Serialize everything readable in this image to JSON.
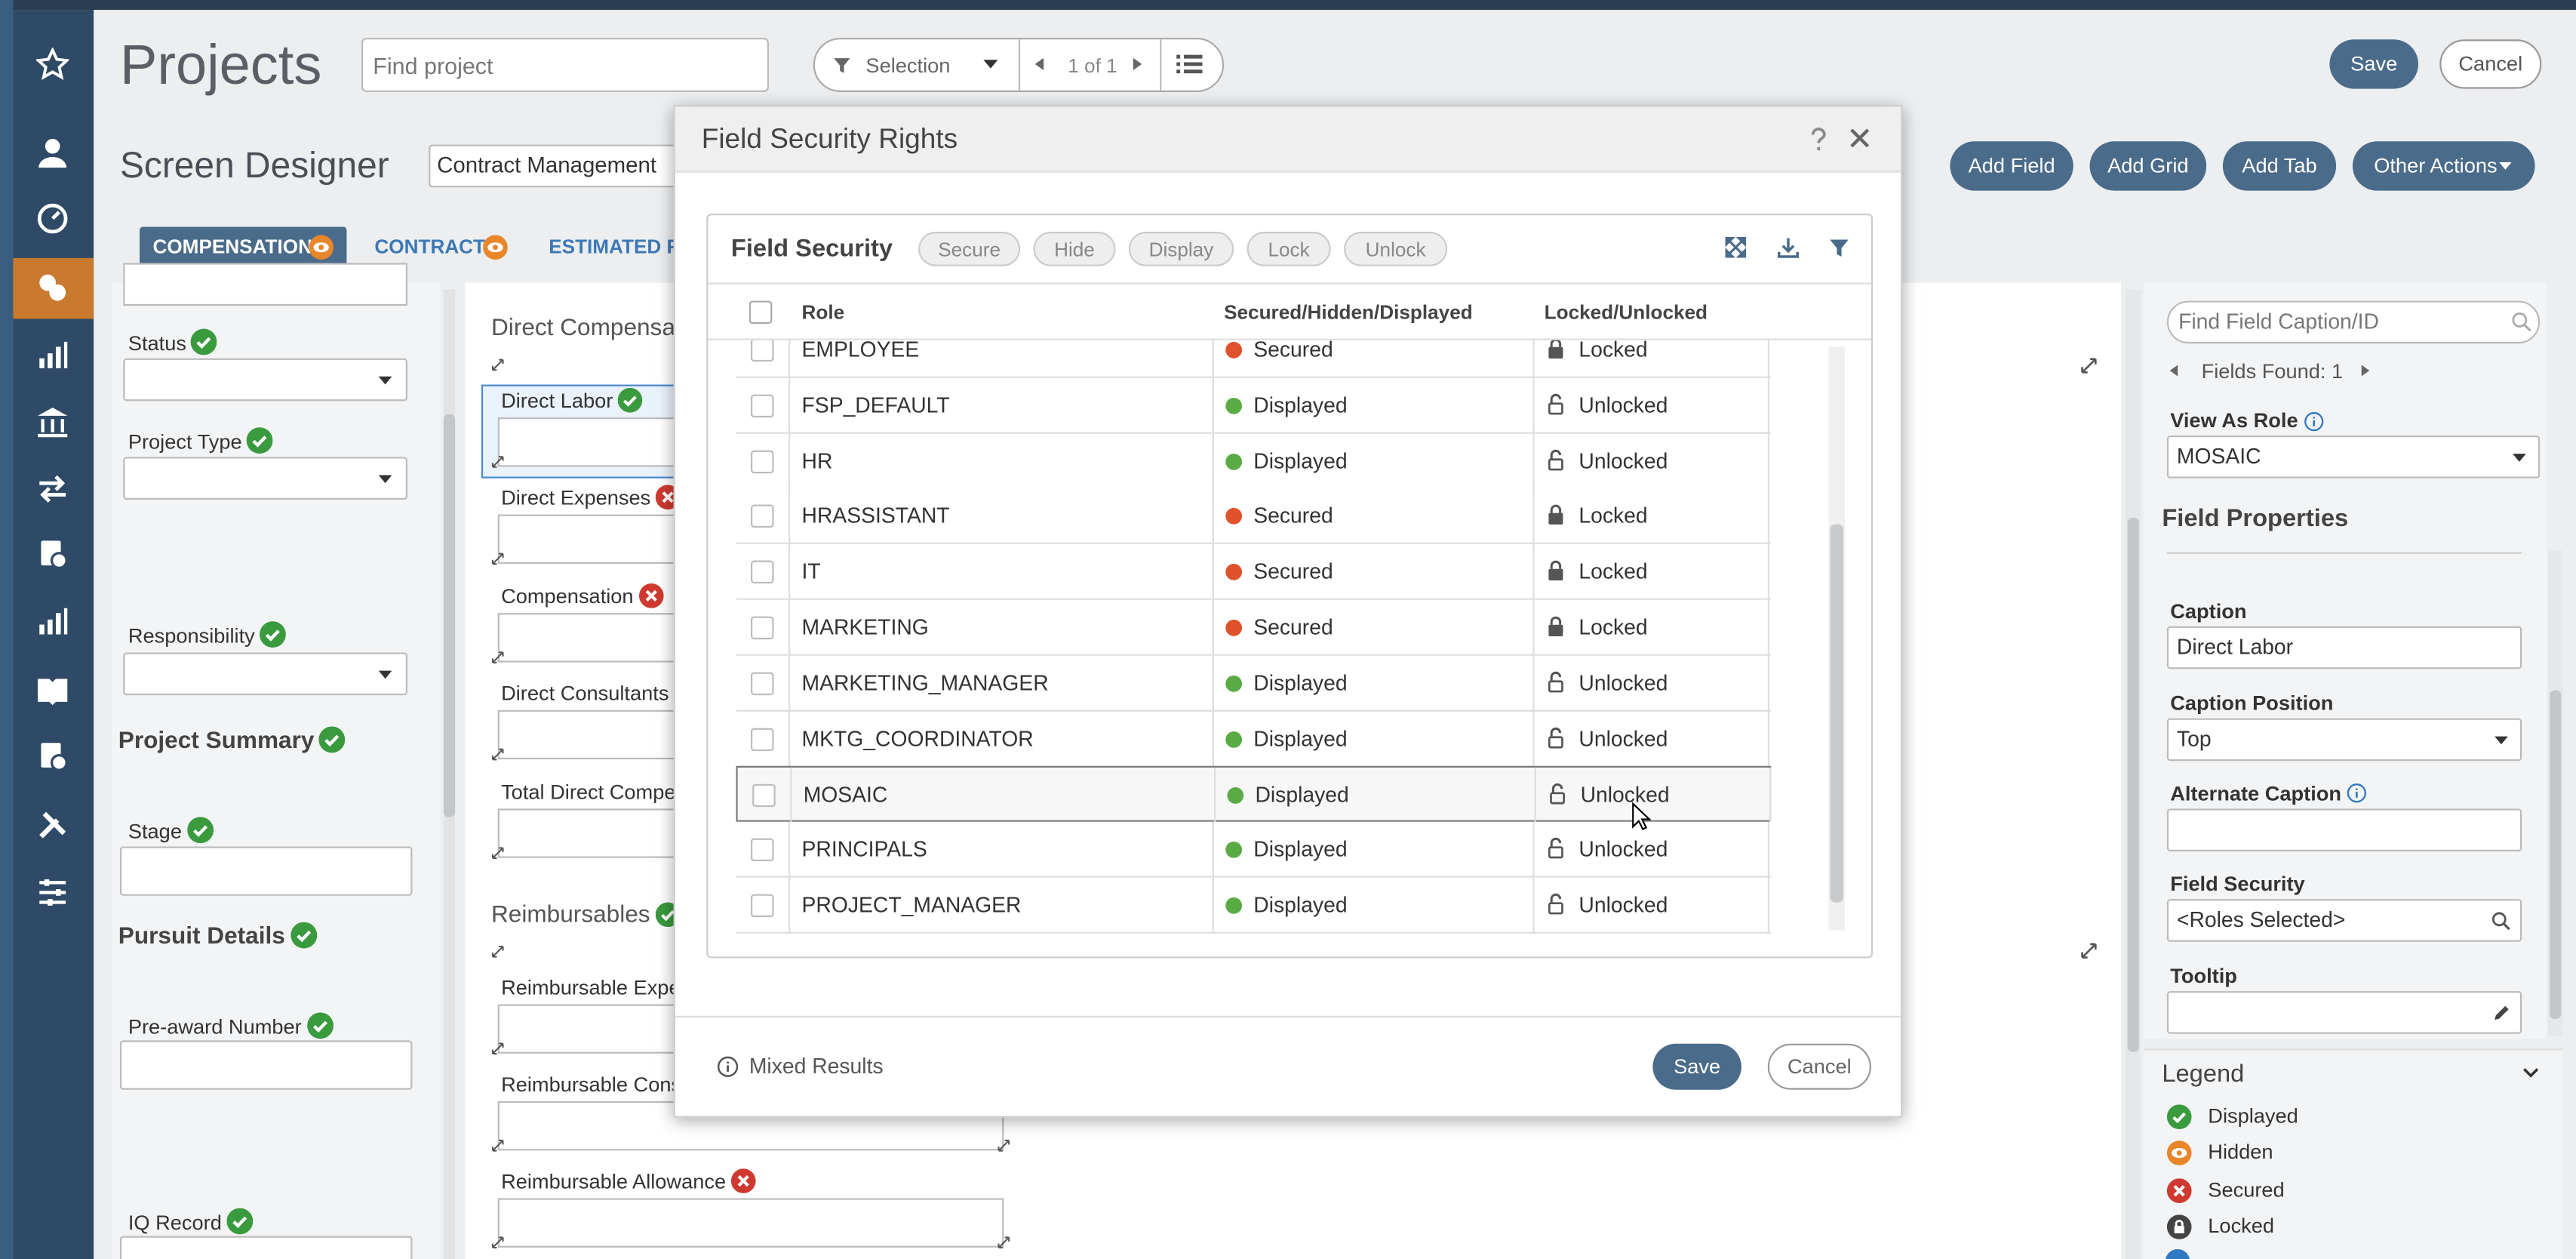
{
  "header": {
    "title": "Projects",
    "search_placeholder": "Find project",
    "filter_label": "Selection",
    "pager": "1 of 1",
    "save": "Save",
    "cancel": "Cancel"
  },
  "toolbar": {
    "title": "Screen Designer",
    "screen": "Contract Management",
    "buttons": [
      "Add Field",
      "Add Grid",
      "Add Tab",
      "Other Actions"
    ]
  },
  "tabs": [
    {
      "label": "COMPENSATION",
      "active": true
    },
    {
      "label": "CONTRACT",
      "active": false
    },
    {
      "label": "ESTIMATED FE",
      "active": false
    }
  ],
  "left_panel": {
    "items": [
      {
        "label": "Status",
        "status": "displayed",
        "control": "select"
      },
      {
        "label": "Project Type",
        "status": "displayed",
        "control": "select"
      },
      {
        "label": "Responsibility",
        "status": "displayed",
        "control": "select"
      },
      {
        "label": "Project Summary",
        "status": "displayed",
        "control": "section"
      },
      {
        "label": "Stage",
        "status": "displayed",
        "control": "input"
      },
      {
        "label": "Pursuit Details",
        "status": "displayed",
        "control": "section"
      },
      {
        "label": "Pre-award Number",
        "status": "displayed",
        "control": "input"
      },
      {
        "label": "IQ Record",
        "status": "displayed",
        "control": "input"
      }
    ]
  },
  "canvas": {
    "items": [
      {
        "label": "Direct Compensa",
        "control": "section"
      },
      {
        "label": "Direct Labor",
        "status": "displayed",
        "control": "input",
        "selected": true
      },
      {
        "label": "Direct Expenses",
        "status": "secured",
        "control": "input"
      },
      {
        "label": "Compensation",
        "status": "secured",
        "control": "input"
      },
      {
        "label": "Direct Consultants",
        "control": "input"
      },
      {
        "label": "Total Direct Compe",
        "control": "input"
      },
      {
        "label": "Reimbursables",
        "status": "displayed",
        "control": "section"
      },
      {
        "label": "Reimbursable Expe",
        "control": "input"
      },
      {
        "label": "Reimbursable Cons",
        "control": "input"
      },
      {
        "label": "Reimbursable Allowance",
        "status": "secured",
        "control": "input"
      }
    ]
  },
  "dialog": {
    "title": "Field Security Rights",
    "card_title": "Field Security",
    "actions": [
      "Secure",
      "Hide",
      "Display",
      "Lock",
      "Unlock"
    ],
    "columns": [
      "Role",
      "Secured/Hidden/Displayed",
      "Locked/Unlocked"
    ],
    "rows": [
      {
        "role": "EMPLOYEE",
        "state": "Secured",
        "state_color": "#e0522b",
        "lock": "Locked",
        "locked": true
      },
      {
        "role": "FSP_DEFAULT",
        "state": "Displayed",
        "state_color": "#5aab45",
        "lock": "Unlocked",
        "locked": false
      },
      {
        "role": "HR",
        "state": "Displayed",
        "state_color": "#5aab45",
        "lock": "Unlocked",
        "locked": false
      },
      {
        "role": "HRASSISTANT",
        "state": "Secured",
        "state_color": "#e0522b",
        "lock": "Locked",
        "locked": true
      },
      {
        "role": "IT",
        "state": "Secured",
        "state_color": "#e0522b",
        "lock": "Locked",
        "locked": true
      },
      {
        "role": "MARKETING",
        "state": "Secured",
        "state_color": "#e0522b",
        "lock": "Locked",
        "locked": true
      },
      {
        "role": "MARKETING_MANAGER",
        "state": "Displayed",
        "state_color": "#5aab45",
        "lock": "Unlocked",
        "locked": false
      },
      {
        "role": "MKTG_COORDINATOR",
        "state": "Displayed",
        "state_color": "#5aab45",
        "lock": "Unlocked",
        "locked": false
      },
      {
        "role": "MOSAIC",
        "state": "Displayed",
        "state_color": "#5aab45",
        "lock": "Unlocked",
        "locked": false,
        "highlighted": true
      },
      {
        "role": "PRINCIPALS",
        "state": "Displayed",
        "state_color": "#5aab45",
        "lock": "Unlocked",
        "locked": false
      },
      {
        "role": "PROJECT_MANAGER",
        "state": "Displayed",
        "state_color": "#5aab45",
        "lock": "Unlocked",
        "locked": false
      }
    ],
    "footer_note": "Mixed Results",
    "save": "Save",
    "cancel": "Cancel"
  },
  "right_panel": {
    "search_placeholder": "Find Field Caption/ID",
    "fields_found": "Fields Found: 1",
    "view_as_role_label": "View As Role",
    "view_as_role": "MOSAIC",
    "section_title": "Field Properties",
    "properties": [
      {
        "label": "Caption",
        "value": "Direct Labor",
        "control": "input"
      },
      {
        "label": "Caption Position",
        "value": "Top",
        "control": "select"
      },
      {
        "label": "Alternate Caption",
        "control": "input",
        "info": true
      },
      {
        "label": "Field Security",
        "value": "<Roles Selected>",
        "control": "search"
      },
      {
        "label": "Tooltip",
        "control": "edit"
      }
    ]
  },
  "legend": {
    "title": "Legend",
    "items": [
      {
        "label": "Displayed",
        "status": "displayed"
      },
      {
        "label": "Hidden",
        "status": "hidden"
      },
      {
        "label": "Secured",
        "status": "secured"
      },
      {
        "label": "Locked",
        "status": "locked"
      }
    ]
  }
}
